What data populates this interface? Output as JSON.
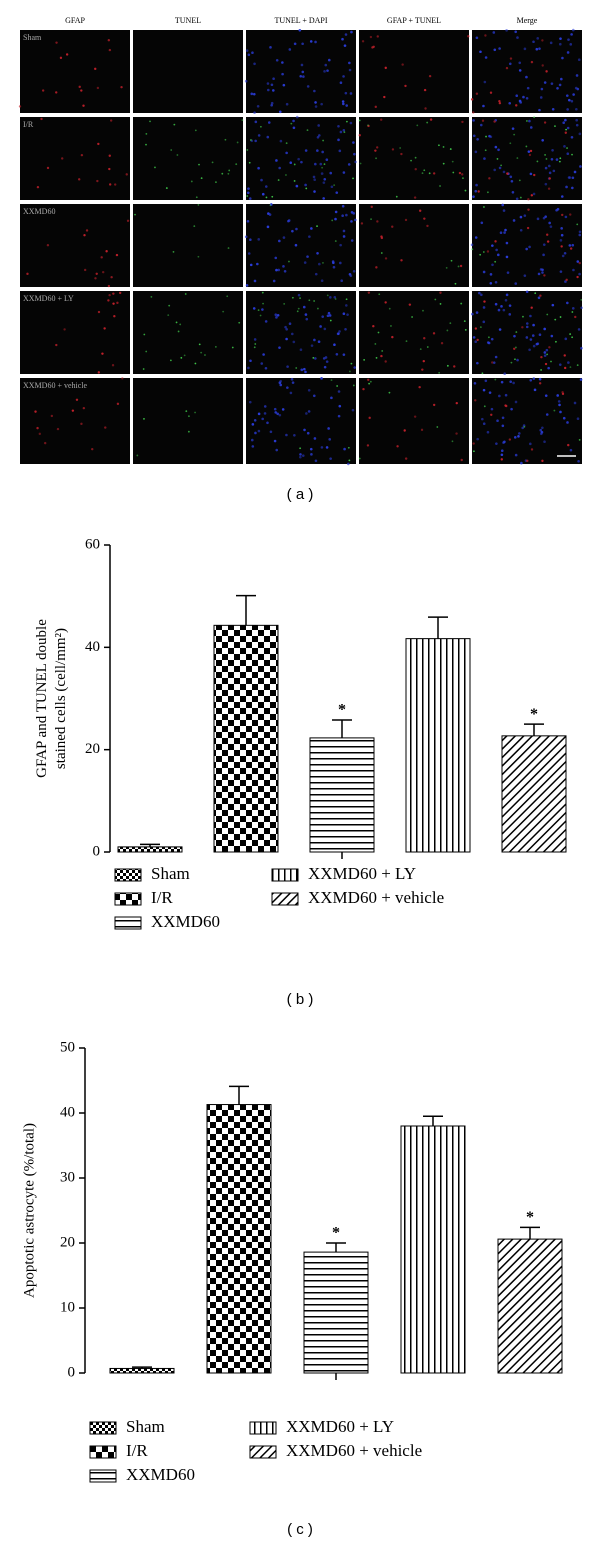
{
  "panel_a": {
    "columns": [
      "GFAP",
      "TUNEL",
      "TUNEL + DAPI",
      "GFAP + TUNEL",
      "Merge"
    ],
    "rows": [
      "Sham",
      "I/R",
      "XXMD60",
      "XXMD60 + LY",
      "XXMD60 + vehicle"
    ],
    "caption": "( a )"
  },
  "chart_data": [
    {
      "type": "bar",
      "caption": "( b )",
      "ylabel_lines": [
        "GFAP and TUNEL double",
        "stained cells (cell/mm²)"
      ],
      "categories": [
        "Sham",
        "I/R",
        "XXMD60",
        "XXMD60 + LY",
        "XXMD60 + vehicle"
      ],
      "values": [
        1,
        44.3,
        22.3,
        41.7,
        22.7
      ],
      "errors": [
        0.5,
        5.8,
        3.5,
        4.2,
        2.3
      ],
      "significance": [
        null,
        null,
        "*",
        null,
        "*"
      ],
      "patterns": [
        "fine-check",
        "check",
        "hlines",
        "vlines",
        "diag"
      ],
      "ylim": [
        0,
        60
      ],
      "yticks": [
        0,
        20,
        40,
        60
      ]
    },
    {
      "type": "bar",
      "caption": "( c )",
      "ylabel_lines": [
        "Apoptotic astrocyte (%/total)"
      ],
      "categories": [
        "Sham",
        "I/R",
        "XXMD60",
        "XXMD60 + LY",
        "XXMD60 + vehicle"
      ],
      "values": [
        0.7,
        41.3,
        18.6,
        38,
        20.6
      ],
      "errors": [
        0.2,
        2.8,
        1.4,
        1.5,
        1.8
      ],
      "significance": [
        null,
        null,
        "*",
        null,
        "*"
      ],
      "patterns": [
        "fine-check",
        "check",
        "hlines",
        "vlines",
        "diag"
      ],
      "ylim": [
        0,
        50
      ],
      "yticks": [
        0,
        10,
        20,
        30,
        40,
        50
      ]
    }
  ]
}
